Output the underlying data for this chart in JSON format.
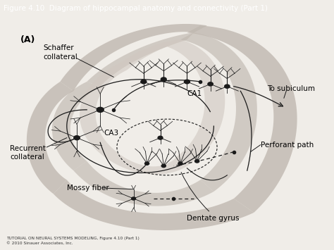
{
  "title": "Figure 4.10  Diagram of hippocampal anatomy and connectivity (Part 1)",
  "title_bg": "#8B2020",
  "title_color": "#FFFFFF",
  "bg_color": "#F0EDE8",
  "panel_label": "(A)",
  "tutorial_text": "TUTORIAL ON NEURAL SYSTEMS MODELING, Figure 4.10 (Part 1)",
  "copyright_text": "© 2010 Sinauer Associates, Inc.",
  "gray_band_color": "#C0B8B0",
  "gray_inner_color": "#D0C8C0",
  "line_color": "#1A1A1A"
}
